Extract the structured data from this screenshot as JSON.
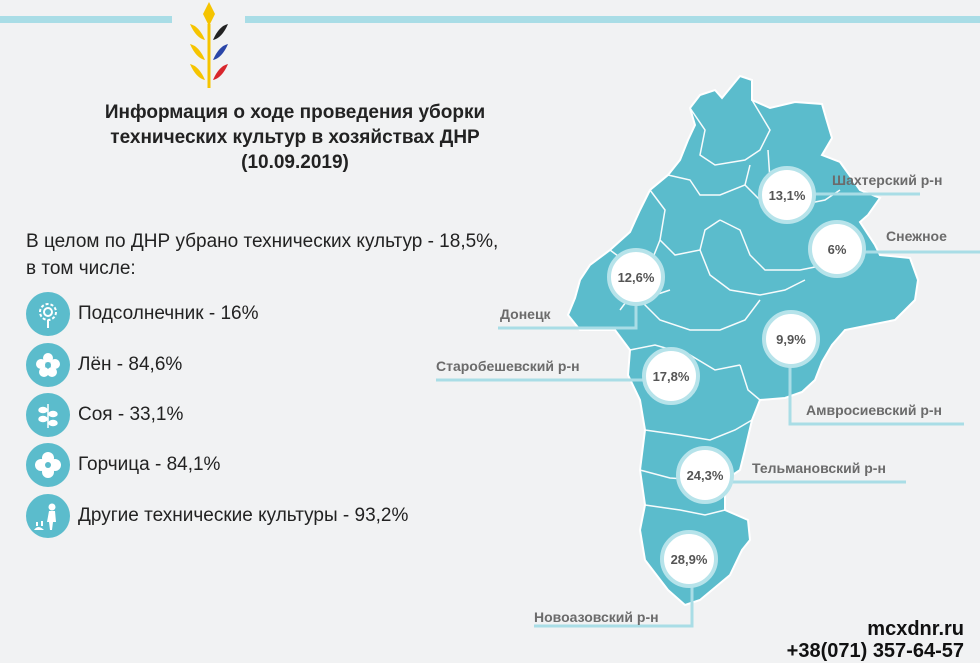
{
  "header": {
    "title_lines": [
      "Информация о ходе проведения уборки",
      "технических культур в хозяйствах ДНР",
      "(10.09.2019)"
    ]
  },
  "summary": {
    "line1": "В целом по ДНР убрано технических культур - 18,5%,",
    "line2": "в том числе:"
  },
  "crops": [
    {
      "label": "Подсолнечник - 16%",
      "icon": "sunflower-icon"
    },
    {
      "label": "Лён - 84,6%",
      "icon": "flax-flower-icon"
    },
    {
      "label": "Соя - 33,1%",
      "icon": "soy-sprout-icon"
    },
    {
      "label": "Горчица - 84,1%",
      "icon": "mustard-flower-icon"
    },
    {
      "label": "Другие технические культуры - 93,2%",
      "icon": "farmer-icon"
    }
  ],
  "regions": [
    {
      "name": "Шахтерский р-н",
      "percent": "13,1%"
    },
    {
      "name": "Снежное",
      "percent": "6%"
    },
    {
      "name": "Донецк",
      "percent": "12,6%"
    },
    {
      "name": "Старобешевский р-н",
      "percent": "17,8%"
    },
    {
      "name": "Амвросиевский р-н",
      "percent": "9,9%"
    },
    {
      "name": "Тельмановский р-н",
      "percent": "24,3%"
    },
    {
      "name": "Новоазовский р-н",
      "percent": "28,9%"
    }
  ],
  "footer": {
    "site": "mcxdnr.ru",
    "phone": "+38(071) 357-64-57"
  },
  "colors": {
    "map_fill": "#5bbccc",
    "map_border": "#ffffff",
    "circle_border": "#b6e3ea",
    "accent_line": "#a9dde6",
    "logo_yellow": "#f5c400",
    "logo_black": "#222222",
    "logo_blue": "#2a46a8",
    "logo_red": "#d8262c"
  }
}
